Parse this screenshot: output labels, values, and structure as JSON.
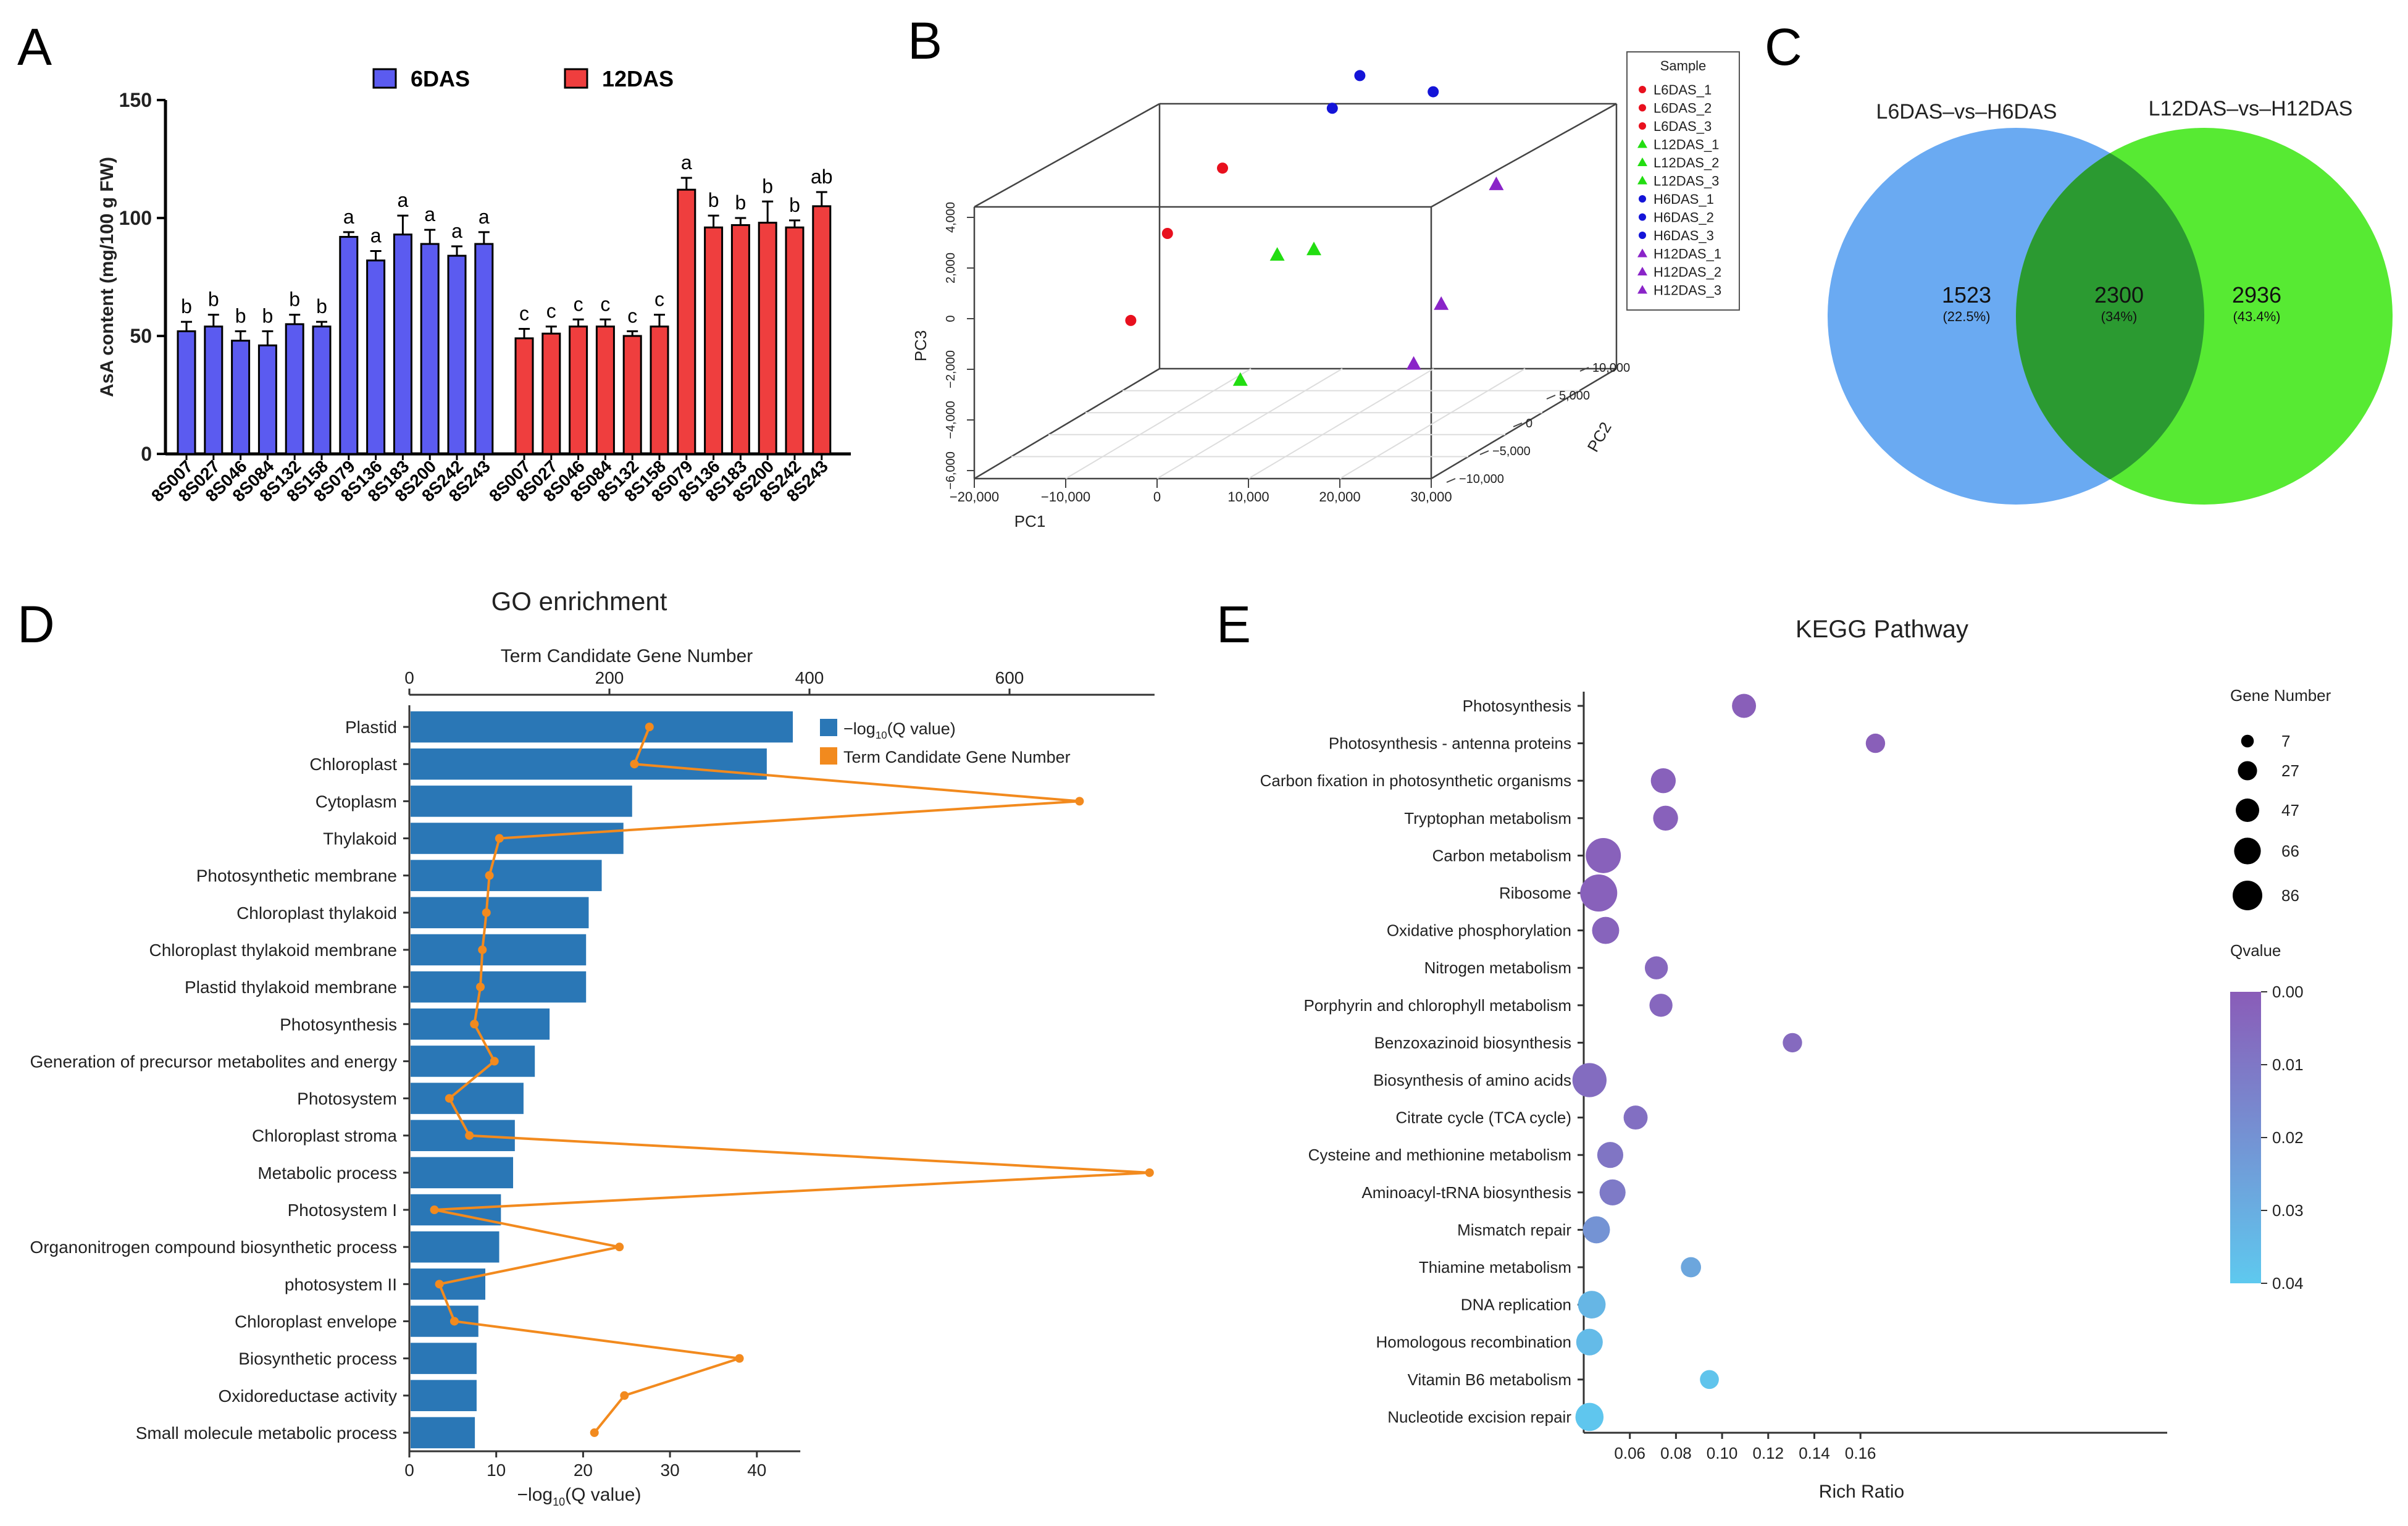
{
  "panel_labels": [
    "A",
    "B",
    "C",
    "D",
    "E"
  ],
  "chart_data": [
    {
      "panel": "A",
      "type": "bar",
      "ylabel": "AsA content (mg/100 g  FW)",
      "ylim": [
        0,
        150
      ],
      "yticks": [
        0,
        50,
        100,
        150
      ],
      "legend": [
        "6DAS",
        "12DAS"
      ],
      "colors": {
        "6DAS": "#5b5bf0",
        "12DAS": "#ef3e3e"
      },
      "groups": [
        {
          "name": "6DAS",
          "categories": [
            "8S007",
            "8S027",
            "8S046",
            "8S084",
            "8S132",
            "8S158",
            "8S079",
            "8S136",
            "8S183",
            "8S200",
            "8S242",
            "8S243"
          ],
          "values": [
            52,
            54,
            48,
            46,
            55,
            54,
            92,
            82,
            93,
            89,
            84,
            89
          ],
          "errors": [
            4,
            5,
            4,
            6,
            4,
            2,
            2,
            4,
            8,
            6,
            4,
            5
          ],
          "letters": [
            "b",
            "b",
            "b",
            "b",
            "b",
            "b",
            "a",
            "a",
            "a",
            "a",
            "a",
            "a"
          ]
        },
        {
          "name": "12DAS",
          "categories": [
            "8S007",
            "8S027",
            "8S046",
            "8S084",
            "8S132",
            "8S158",
            "8S079",
            "8S136",
            "8S183",
            "8S200",
            "8S242",
            "8S243"
          ],
          "values": [
            49,
            51,
            54,
            54,
            50,
            54,
            112,
            96,
            97,
            98,
            96,
            105
          ],
          "errors": [
            4,
            3,
            3,
            3,
            2,
            5,
            5,
            5,
            3,
            9,
            3,
            6
          ],
          "letters": [
            "c",
            "c",
            "c",
            "c",
            "c",
            "c",
            "a",
            "b",
            "b",
            "b",
            "b",
            "ab"
          ]
        }
      ]
    },
    {
      "panel": "B",
      "type": "scatter",
      "xlabel": "PC1",
      "ylabel": "PC3",
      "zlabel": "PC2",
      "x_ticks": [
        "−20,000",
        "−10,000",
        "0",
        "10,000",
        "20,000",
        "30,000"
      ],
      "y_ticks": [
        "−6,000",
        "−4,000",
        "−2,000",
        "0",
        "2,000",
        "4,000"
      ],
      "z_ticks": [
        "−10,000",
        "−5,000",
        "0",
        "5,000",
        "10,000"
      ],
      "legend_title": "Sample",
      "points": [
        {
          "name": "L6DAS_1",
          "x": -5000,
          "y": 3000,
          "z": 2000,
          "color": "#e8101e",
          "marker": "circle"
        },
        {
          "name": "L6DAS_2",
          "x": -9000,
          "y": 1000,
          "z": 0,
          "color": "#e8101e",
          "marker": "circle"
        },
        {
          "name": "L6DAS_3",
          "x": -12000,
          "y": -2000,
          "z": -1000,
          "color": "#e8101e",
          "marker": "circle"
        },
        {
          "name": "L12DAS_1",
          "x": 2000,
          "y": 0,
          "z": 1000,
          "color": "#22dd11",
          "marker": "triangle"
        },
        {
          "name": "L12DAS_2",
          "x": 5000,
          "y": 0,
          "z": 2000,
          "color": "#22dd11",
          "marker": "triangle"
        },
        {
          "name": "L12DAS_3",
          "x": 1000,
          "y": -4000,
          "z": -2000,
          "color": "#22dd11",
          "marker": "triangle"
        },
        {
          "name": "H6DAS_1",
          "x": 8000,
          "y": 6000,
          "z": 4000,
          "color": "#1414d8",
          "marker": "circle"
        },
        {
          "name": "H6DAS_2",
          "x": 14000,
          "y": 5000,
          "z": 6000,
          "color": "#1414d8",
          "marker": "circle"
        },
        {
          "name": "H6DAS_3",
          "x": 6000,
          "y": 5000,
          "z": 3000,
          "color": "#1414d8",
          "marker": "circle"
        },
        {
          "name": "H12DAS_1",
          "x": 28000,
          "y": 3000,
          "z": -1000,
          "color": "#8a24c8",
          "marker": "triangle"
        },
        {
          "name": "H12DAS_2",
          "x": 24000,
          "y": -1000,
          "z": -3000,
          "color": "#8a24c8",
          "marker": "triangle"
        },
        {
          "name": "H12DAS_3",
          "x": 22000,
          "y": -3000,
          "z": -4000,
          "color": "#8a24c8",
          "marker": "triangle"
        }
      ]
    },
    {
      "panel": "C",
      "type": "venn",
      "sets": [
        {
          "name": "L6DAS–vs–H6DAS",
          "color": "#6aaaf2"
        },
        {
          "name": "L12DAS–vs–H12DAS",
          "color": "#57ea33"
        }
      ],
      "overlap_color": "#2b9a31",
      "regions": [
        {
          "count": "1523",
          "pct": "(22.5%)"
        },
        {
          "count": "2300",
          "pct": "(34%)"
        },
        {
          "count": "2936",
          "pct": "(43.4%)"
        }
      ]
    },
    {
      "panel": "D",
      "type": "bar",
      "title": "GO enrichment",
      "top_axis_title": "Term Candidate Gene Number",
      "top_ticks": [
        0,
        200,
        400,
        600
      ],
      "xlabel": "−log",
      "xlabel_sub": "10",
      "xlabel_end": "(Q value)",
      "xticks": [
        0,
        10,
        20,
        30,
        40
      ],
      "xlim": [
        0,
        45
      ],
      "top_lim": [
        0,
        745
      ],
      "legend": [
        {
          "pre": "−log",
          "sub": "10",
          "post": "(Q value)",
          "color": "#2a77b6"
        },
        {
          "pre": "Term Candidate Gene Number",
          "sub": "",
          "post": "",
          "color": "#f28a1e"
        }
      ],
      "categories": [
        "Plastid",
        "Chloroplast",
        "Cytoplasm",
        "Thylakoid",
        "Photosynthetic membrane",
        "Chloroplast thylakoid",
        "Chloroplast thylakoid membrane",
        "Plastid thylakoid membrane",
        "Photosynthesis",
        "Generation of precursor metabolites and energy",
        "Photosystem",
        "Chloroplast stroma",
        "Metabolic process",
        "Photosystem I",
        "Organonitrogen compound biosynthetic process",
        "photosystem II",
        "Chloroplast envelope",
        "Biosynthetic process",
        "Oxidoreductase activity",
        "Small molecule metabolic process"
      ],
      "values": [
        44,
        41,
        25.5,
        24.5,
        22,
        20.5,
        20.2,
        20.2,
        16,
        14.3,
        13,
        12,
        11.8,
        10.4,
        10.2,
        8.6,
        7.8,
        7.6,
        7.6,
        7.4
      ],
      "gene_numbers": [
        240,
        225,
        670,
        90,
        80,
        77,
        73,
        71,
        65,
        85,
        40,
        60,
        740,
        25,
        210,
        30,
        45,
        330,
        215,
        185
      ]
    },
    {
      "panel": "E",
      "type": "scatter",
      "title": "KEGG Pathway",
      "xlabel": "Rich Ratio",
      "xticks": [
        "0.06",
        "0.08",
        "0.10",
        "0.12",
        "0.14",
        "0.16"
      ],
      "size_legend_title": "Gene Number",
      "size_legend": [
        7,
        27,
        47,
        66,
        86
      ],
      "color_legend_title": "Qvalue",
      "color_ticks": [
        "0.00",
        "0.01",
        "0.02",
        "0.03",
        "0.04"
      ],
      "color_range": [
        "#8a5cb8",
        "#5ec9ef"
      ],
      "categories": [
        "Photosynthesis",
        "Photosynthesis - antenna proteins",
        "Carbon fixation in photosynthetic organisms",
        "Tryptophan metabolism",
        "Carbon metabolism",
        "Ribosome",
        "Oxidative phosphorylation",
        "Nitrogen metabolism",
        "Porphyrin and chlorophyll metabolism",
        "Benzoxazinoid biosynthesis",
        "Biosynthesis of amino acids",
        "Citrate cycle (TCA cycle)",
        "Cysteine and methionine metabolism",
        "Aminoacyl-tRNA biosynthesis",
        "Mismatch repair",
        "Thiamine metabolism",
        "DNA replication",
        "Homologous recombination",
        "Vitamin B6 metabolism",
        "Nucleotide excision repair"
      ],
      "rich_ratio": [
        0.1095,
        0.1665,
        0.0745,
        0.0755,
        0.0485,
        0.0465,
        0.0495,
        0.0715,
        0.0735,
        0.1305,
        0.0425,
        0.0625,
        0.0515,
        0.0525,
        0.0455,
        0.0865,
        0.0435,
        0.0425,
        0.0945,
        0.0425
      ],
      "gene_number": [
        27,
        14,
        30,
        30,
        75,
        86,
        38,
        24,
        24,
        14,
        70,
        27,
        34,
        34,
        38,
        16,
        40,
        36,
        13,
        42
      ],
      "qvalue": [
        0.001,
        0.001,
        0.002,
        0.002,
        0.002,
        0.002,
        0.003,
        0.004,
        0.004,
        0.005,
        0.006,
        0.007,
        0.009,
        0.011,
        0.02,
        0.027,
        0.033,
        0.035,
        0.038,
        0.039
      ]
    }
  ]
}
